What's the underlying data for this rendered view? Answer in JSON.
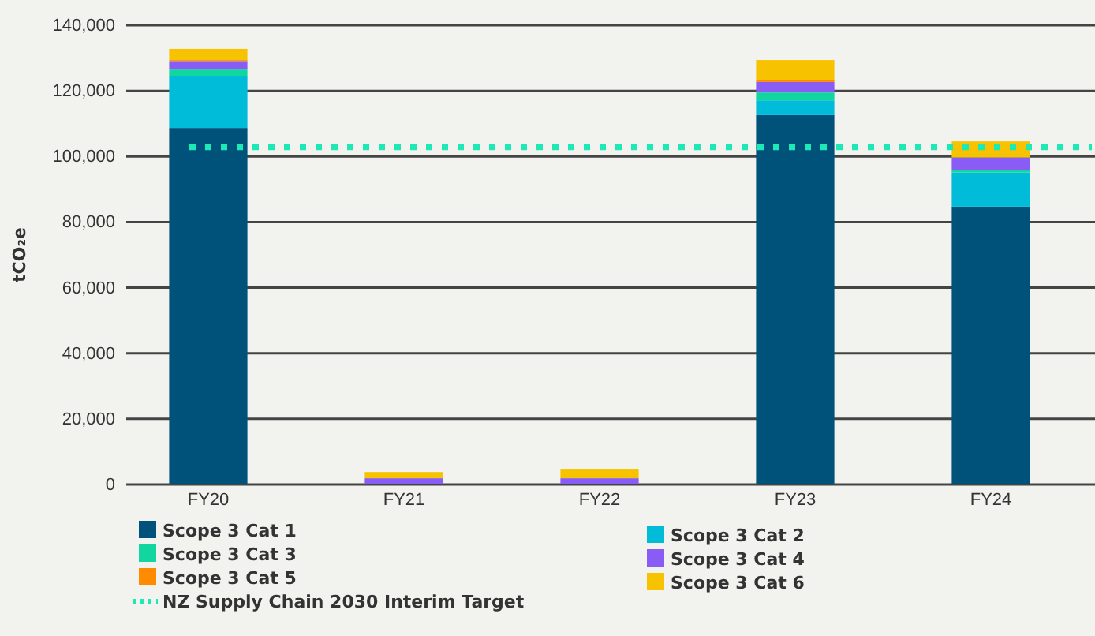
{
  "chart_data": {
    "type": "bar",
    "stacked": true,
    "ylabel": "tCO₂e",
    "categories": [
      "FY20",
      "FY21",
      "FY22",
      "FY23",
      "FY24"
    ],
    "series": [
      {
        "name": "Scope 3 Cat 1",
        "color": "#01527a",
        "values": [
          108700,
          0,
          0,
          112600,
          84700
        ]
      },
      {
        "name": "Scope 3 Cat 2",
        "color": "#00bcd8",
        "values": [
          15900,
          0,
          0,
          4500,
          10400
        ]
      },
      {
        "name": "Scope 3 Cat 3",
        "color": "#12d6a0",
        "values": [
          1900,
          0,
          0,
          2400,
          800
        ]
      },
      {
        "name": "Scope 3 Cat 4",
        "color": "#8a5cf6",
        "values": [
          2600,
          1900,
          1900,
          3200,
          3800
        ]
      },
      {
        "name": "Scope 3 Cat 5",
        "color": "#ff8c00",
        "values": [
          300,
          0,
          0,
          500,
          0
        ]
      },
      {
        "name": "Scope 3 Cat 6",
        "color": "#f7c300",
        "values": [
          3400,
          1900,
          2900,
          6200,
          4900
        ]
      }
    ],
    "ylim": [
      0,
      140000
    ],
    "yticks": [
      {
        "value": 0,
        "label": "0"
      },
      {
        "value": 20000,
        "label": "20,000"
      },
      {
        "value": 40000,
        "label": "40,000"
      },
      {
        "value": 60000,
        "label": "60,000"
      },
      {
        "value": 80000,
        "label": "80,000"
      },
      {
        "value": 100000,
        "label": "100,000"
      },
      {
        "value": 120000,
        "label": "120,000"
      },
      {
        "value": 140000,
        "label": "140,000"
      }
    ],
    "grid": "y",
    "legend": "bottom",
    "ref_lines": [
      {
        "axis": "y",
        "value": 102900,
        "label": "NZ Supply Chain 2030 Interim Target",
        "color": "#1de9b6",
        "line_style": "dotted"
      }
    ]
  }
}
